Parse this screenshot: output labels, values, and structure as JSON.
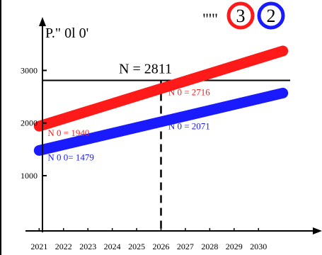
{
  "chart_data": {
    "type": "line",
    "title": "",
    "corner_label": "P.\"  0l  0'",
    "legend_prefix": "\"'\"",
    "legend": [
      {
        "label": "3",
        "color": "#ff1a1a"
      },
      {
        "label": "2",
        "color": "#1a1aff"
      }
    ],
    "x": [
      2021,
      2022,
      2023,
      2024,
      2025,
      2026,
      2027,
      2028,
      2029,
      2030
    ],
    "y_ticks": [
      1000,
      2000,
      3000
    ],
    "xlim": [
      2020.7,
      2031.3
    ],
    "ylim": [
      -50,
      3800
    ],
    "grid": false,
    "series": [
      {
        "color": "#ff1a1a",
        "x": [
          2021,
          2031
        ],
        "y": [
          1940,
          3370
        ]
      },
      {
        "color": "#1a1aff",
        "x": [
          2021,
          2031
        ],
        "y": [
          1479,
          2570
        ]
      }
    ],
    "reference_line": {
      "y": 2811,
      "label": "N      = 2811"
    },
    "vertical_marker": {
      "x": 2026
    },
    "annotations": [
      {
        "text": "N  0 = 2716",
        "color": "#ff1a1a",
        "x": 2026.3,
        "y": 2716
      },
      {
        "text": "N     0 = 1940",
        "color": "#ff1a1a",
        "x": 2021.35,
        "y": 1940
      },
      {
        "text": "N        0 = 2071",
        "color": "#1a1aff",
        "x": 2026.3,
        "y": 2071
      },
      {
        "text": "N  0 0= 1479",
        "color": "#1a1aff",
        "x": 2021.35,
        "y": 1479
      }
    ]
  }
}
